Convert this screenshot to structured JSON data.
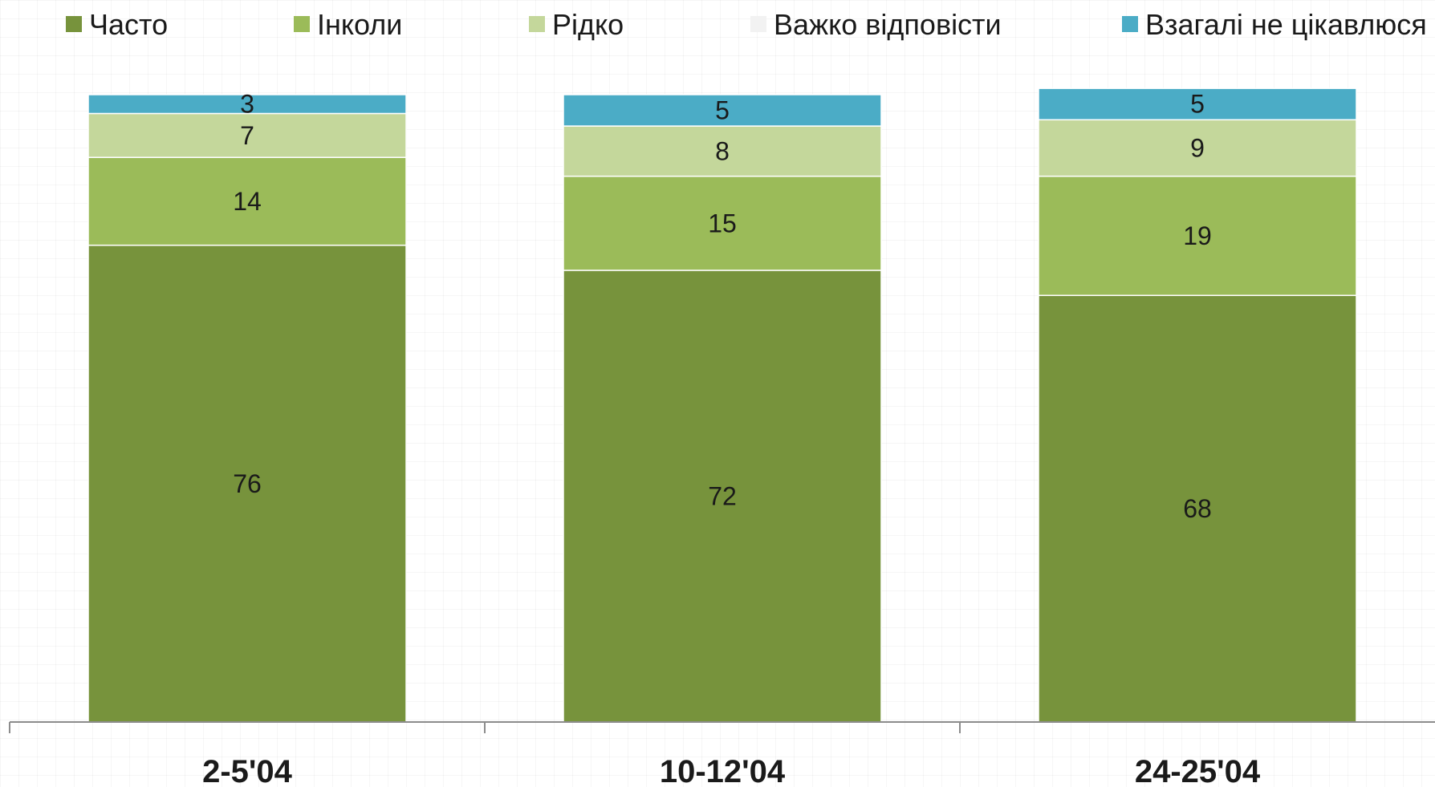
{
  "chart_data": {
    "type": "bar",
    "stacked": true,
    "title": "",
    "xlabel": "",
    "ylabel": "",
    "ylim": [
      0,
      100
    ],
    "grid": false,
    "legend_position": "top",
    "categories": [
      "2-5'04",
      "10-12'04",
      "24-25'04"
    ],
    "series": [
      {
        "name": "Часто",
        "color": "#77933c",
        "values": [
          76,
          72,
          68
        ]
      },
      {
        "name": "Інколи",
        "color": "#9bbb59",
        "values": [
          14,
          15,
          19
        ]
      },
      {
        "name": "Рідко",
        "color": "#c4d79b",
        "values": [
          7,
          8,
          9
        ]
      },
      {
        "name": "Важко відповісти",
        "color": "#f2f2f2",
        "values": [
          0,
          0,
          0
        ],
        "show_labels": false
      },
      {
        "name": "Взагалі не цікавлюся",
        "color": "#4bacc6",
        "values": [
          3,
          5,
          5
        ]
      }
    ]
  }
}
